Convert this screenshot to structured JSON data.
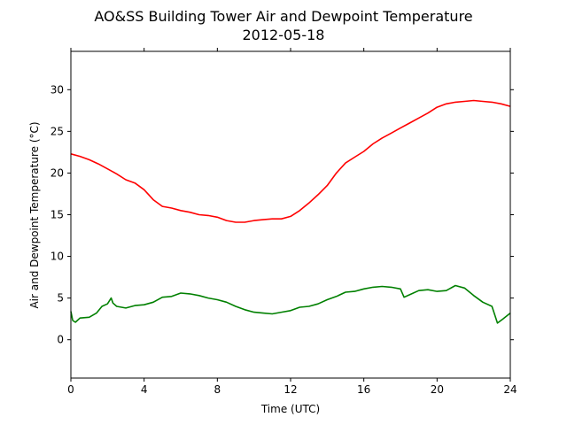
{
  "chart_data": {
    "type": "line",
    "title": "AO&SS Building Tower Air and Dewpoint Temperature",
    "subtitle": "2012-05-18",
    "xlabel": "Time (UTC)",
    "ylabel": "Air and Dewpoint Temperature (°C)",
    "xlim": [
      0,
      24
    ],
    "ylim": [
      -4.6,
      34.6
    ],
    "xticks": [
      0,
      4,
      8,
      12,
      16,
      20,
      24
    ],
    "yticks": [
      0,
      5,
      10,
      15,
      20,
      25,
      30
    ],
    "grid": false,
    "series": [
      {
        "color": "#ff0000",
        "x": [
          0,
          0.5,
          1,
          1.5,
          2,
          2.5,
          3,
          3.5,
          4,
          4.5,
          5,
          5.5,
          6,
          6.5,
          7,
          7.5,
          8,
          8.5,
          9,
          9.5,
          10,
          10.5,
          11,
          11.5,
          12,
          12.5,
          13,
          13.5,
          14,
          14.5,
          15,
          15.5,
          16,
          16.5,
          17,
          17.5,
          18,
          18.5,
          19,
          19.5,
          20,
          20.5,
          21,
          21.5,
          22,
          22.5,
          23,
          23.5,
          24
        ],
        "y": [
          22.3,
          22.0,
          21.6,
          21.1,
          20.5,
          19.9,
          19.2,
          18.8,
          18.0,
          16.8,
          16.0,
          15.8,
          15.5,
          15.3,
          15.0,
          14.9,
          14.7,
          14.3,
          14.1,
          14.1,
          14.3,
          14.4,
          14.5,
          14.5,
          14.8,
          15.5,
          16.4,
          17.4,
          18.5,
          20.0,
          21.2,
          21.9,
          22.6,
          23.5,
          24.2,
          24.8,
          25.4,
          26.0,
          26.6,
          27.2,
          27.9,
          28.3,
          28.5,
          28.6,
          28.7,
          28.6,
          28.5,
          28.3,
          28.0
        ]
      },
      {
        "color": "#008000",
        "x": [
          0,
          0.1,
          0.25,
          0.5,
          1,
          1.4,
          1.7,
          2.0,
          2.2,
          2.3,
          2.5,
          3,
          3.5,
          4,
          4.5,
          5,
          5.5,
          6,
          6.5,
          7,
          7.5,
          8,
          8.5,
          9,
          9.5,
          10,
          10.5,
          11,
          11.5,
          12,
          12.5,
          13,
          13.5,
          14,
          14.5,
          15,
          15.5,
          16,
          16.5,
          17,
          17.5,
          18,
          18.2,
          18.5,
          19,
          19.5,
          20,
          20.5,
          21,
          21.5,
          22,
          22.5,
          23,
          23.3,
          23.6,
          24
        ],
        "y": [
          3.4,
          2.3,
          2.1,
          2.6,
          2.7,
          3.2,
          4.0,
          4.3,
          5.0,
          4.4,
          4.0,
          3.8,
          4.1,
          4.2,
          4.5,
          5.1,
          5.2,
          5.6,
          5.5,
          5.3,
          5.0,
          4.8,
          4.5,
          4.0,
          3.6,
          3.3,
          3.2,
          3.1,
          3.3,
          3.5,
          3.9,
          4.0,
          4.3,
          4.8,
          5.2,
          5.7,
          5.8,
          6.1,
          6.3,
          6.4,
          6.3,
          6.1,
          5.1,
          5.4,
          5.9,
          6.0,
          5.8,
          5.9,
          6.5,
          6.2,
          5.3,
          4.5,
          4.0,
          2.0,
          2.5,
          3.2
        ]
      }
    ]
  }
}
